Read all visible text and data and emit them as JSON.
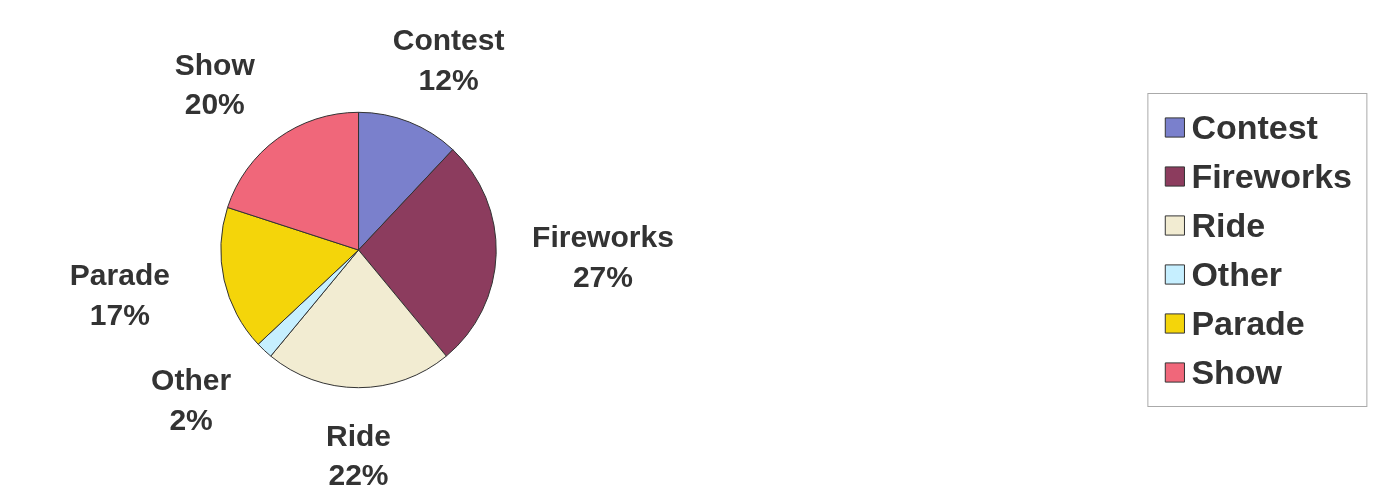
{
  "chart_data": {
    "type": "pie",
    "categories": [
      "Contest",
      "Fireworks",
      "Ride",
      "Other",
      "Parade",
      "Show"
    ],
    "values": [
      12,
      27,
      22,
      2,
      17,
      20
    ],
    "value_labels": [
      "12%",
      "27%",
      "22%",
      "2%",
      "17%",
      "20%"
    ],
    "colors": [
      "#7a80cc",
      "#8c3c5e",
      "#f2ecd2",
      "#c6efff",
      "#f4d50a",
      "#f0677a"
    ],
    "legend": "right"
  }
}
